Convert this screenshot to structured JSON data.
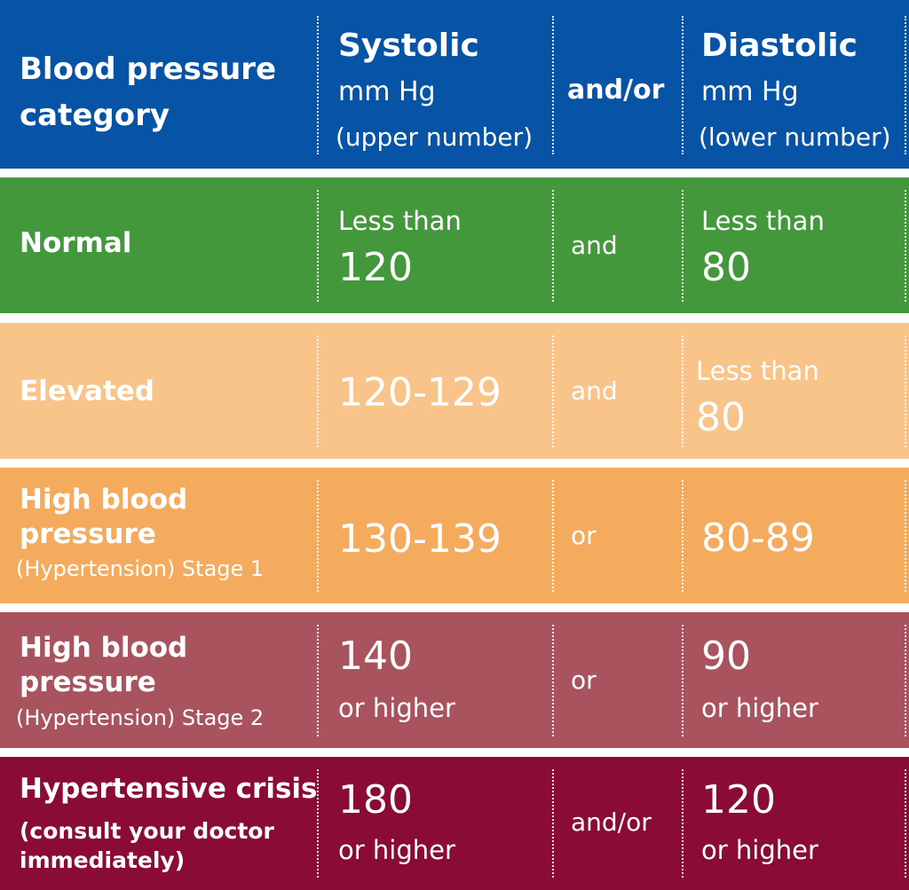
{
  "colors": {
    "header": "#0753a6",
    "normal": "#43983b",
    "elevated": "#f9c48a",
    "stage1": "#f5ab5e",
    "stage2": "#a8535d",
    "crisis": "#8a0b37"
  },
  "header": {
    "category_line1": "Blood pressure",
    "category_line2": "category",
    "systolic_title": "Systolic",
    "systolic_unit": "mm Hg",
    "systolic_note": "(upper number)",
    "conjunction": "and/or",
    "diastolic_title": "Diastolic",
    "diastolic_unit": "mm Hg",
    "diastolic_note": "(lower number)"
  },
  "rows": [
    {
      "category": "Normal",
      "systolic_prefix": "Less than",
      "systolic_value": "120",
      "conjunction": "and",
      "diastolic_prefix": "Less than",
      "diastolic_value": "80"
    },
    {
      "category": "Elevated",
      "systolic_value": "120-129",
      "conjunction": "and",
      "diastolic_prefix": "Less than",
      "diastolic_value": "80"
    },
    {
      "category_line1": "High blood",
      "category_line2": "pressure",
      "category_line3": "(Hypertension) Stage 1",
      "systolic_value": "130-139",
      "conjunction": "or",
      "diastolic_value": "80-89"
    },
    {
      "category_line1": "High blood",
      "category_line2": "pressure",
      "category_line3": "(Hypertension) Stage 2",
      "systolic_value": "140",
      "systolic_suffix": "or higher",
      "conjunction": "or",
      "diastolic_value": "90",
      "diastolic_suffix": "or higher"
    },
    {
      "category_line1": "Hypertensive crisis",
      "category_line2": "(consult your doctor",
      "category_line3": "immediately)",
      "systolic_value": "180",
      "systolic_suffix": "or higher",
      "conjunction": "and/or",
      "diastolic_value": "120",
      "diastolic_suffix": "or higher"
    }
  ]
}
